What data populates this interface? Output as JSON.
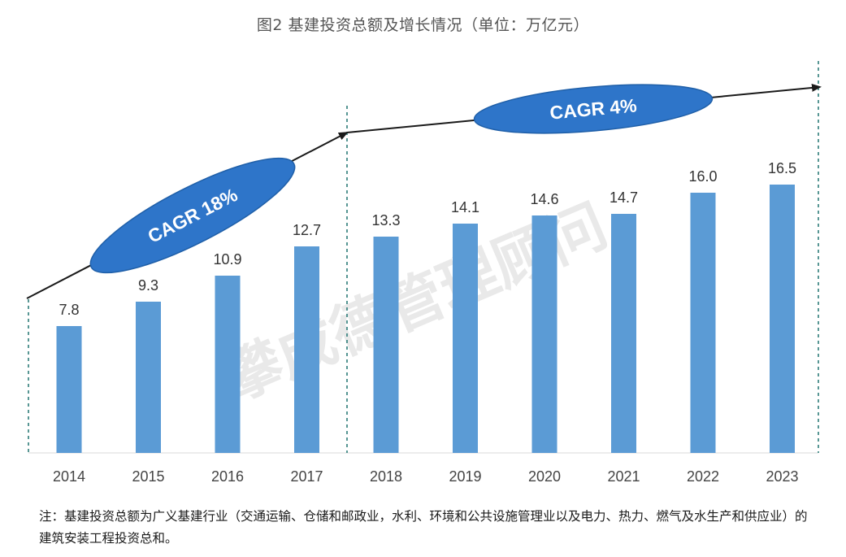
{
  "title": "图2 基建投资总额及增长情况（单位：万亿元）",
  "watermark": "攀成德管理顾问",
  "footnote": "注：基建投资总额为广义基建行业（交通运输、仓储和邮政业，水利、环境和公共设施管理业以及电力、热力、燃气及水生产和供应业）的建筑安装工程投资总和。",
  "colors": {
    "bar": "#5B9BD5",
    "ellipse_fill": "#2E75C9",
    "ellipse_stroke": "#1F5FA8",
    "arrow": "#1a1a1a",
    "divider": "#2E7D7A"
  },
  "chart_data": {
    "type": "bar",
    "categories": [
      "2014",
      "2015",
      "2016",
      "2017",
      "2018",
      "2019",
      "2020",
      "2021",
      "2022",
      "2023"
    ],
    "values": [
      7.8,
      9.3,
      10.9,
      12.7,
      13.3,
      14.1,
      14.6,
      14.7,
      16.0,
      16.5
    ],
    "value_labels": [
      "7.8",
      "9.3",
      "10.9",
      "12.7",
      "13.3",
      "14.1",
      "14.6",
      "14.7",
      "16.0",
      "16.5"
    ],
    "ylim": [
      0,
      20
    ],
    "grid": false,
    "annotations": [
      {
        "text": "CAGR 18%",
        "period": [
          "2014",
          "2017"
        ]
      },
      {
        "text": "CAGR 4%",
        "period": [
          "2018",
          "2023"
        ]
      }
    ]
  }
}
